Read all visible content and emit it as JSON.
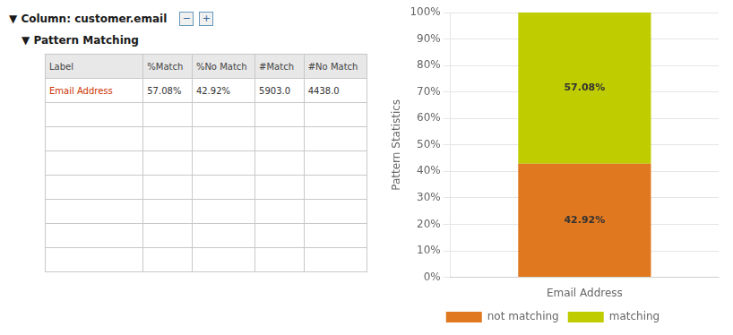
{
  "chart_data": {
    "type": "bar",
    "title": "▼ Column: customer.email",
    "annotations": [
      "−",
      "+"
    ],
    "subtitle": "▼ Pattern Matching",
    "table": {
      "headers": [
        "Label",
        "%Match",
        "%No Match",
        "#Match",
        "#No Match"
      ],
      "rows": [
        [
          "Email Address",
          "57.08%",
          "42.92%",
          "5903.0",
          "4438.0"
        ]
      ]
    },
    "categories": [
      "Email Address"
    ],
    "series": [
      {
        "name": "not matching",
        "color": "#E07820",
        "values": [
          42.92
        ],
        "value_labels": [
          "42.92%"
        ]
      },
      {
        "name": "matching",
        "color": "#BFCC00",
        "values": [
          57.08
        ],
        "value_labels": [
          "57.08%"
        ]
      }
    ],
    "stacked": true,
    "data_labels": true,
    "ylabel": "Pattern Statistics",
    "ylim": [
      0,
      100
    ],
    "yticks": [
      {
        "value": 0,
        "label": "0%"
      },
      {
        "value": 10,
        "label": "10%"
      },
      {
        "value": 20,
        "label": "20%"
      },
      {
        "value": 30,
        "label": "30%"
      },
      {
        "value": 40,
        "label": "40%"
      },
      {
        "value": 50,
        "label": "50%"
      },
      {
        "value": 60,
        "label": "60%"
      },
      {
        "value": 70,
        "label": "70%"
      },
      {
        "value": 80,
        "label": "80%"
      },
      {
        "value": 90,
        "label": "90%"
      },
      {
        "value": 100,
        "label": "100%"
      }
    ],
    "grid": true,
    "legend": "bottom"
  }
}
